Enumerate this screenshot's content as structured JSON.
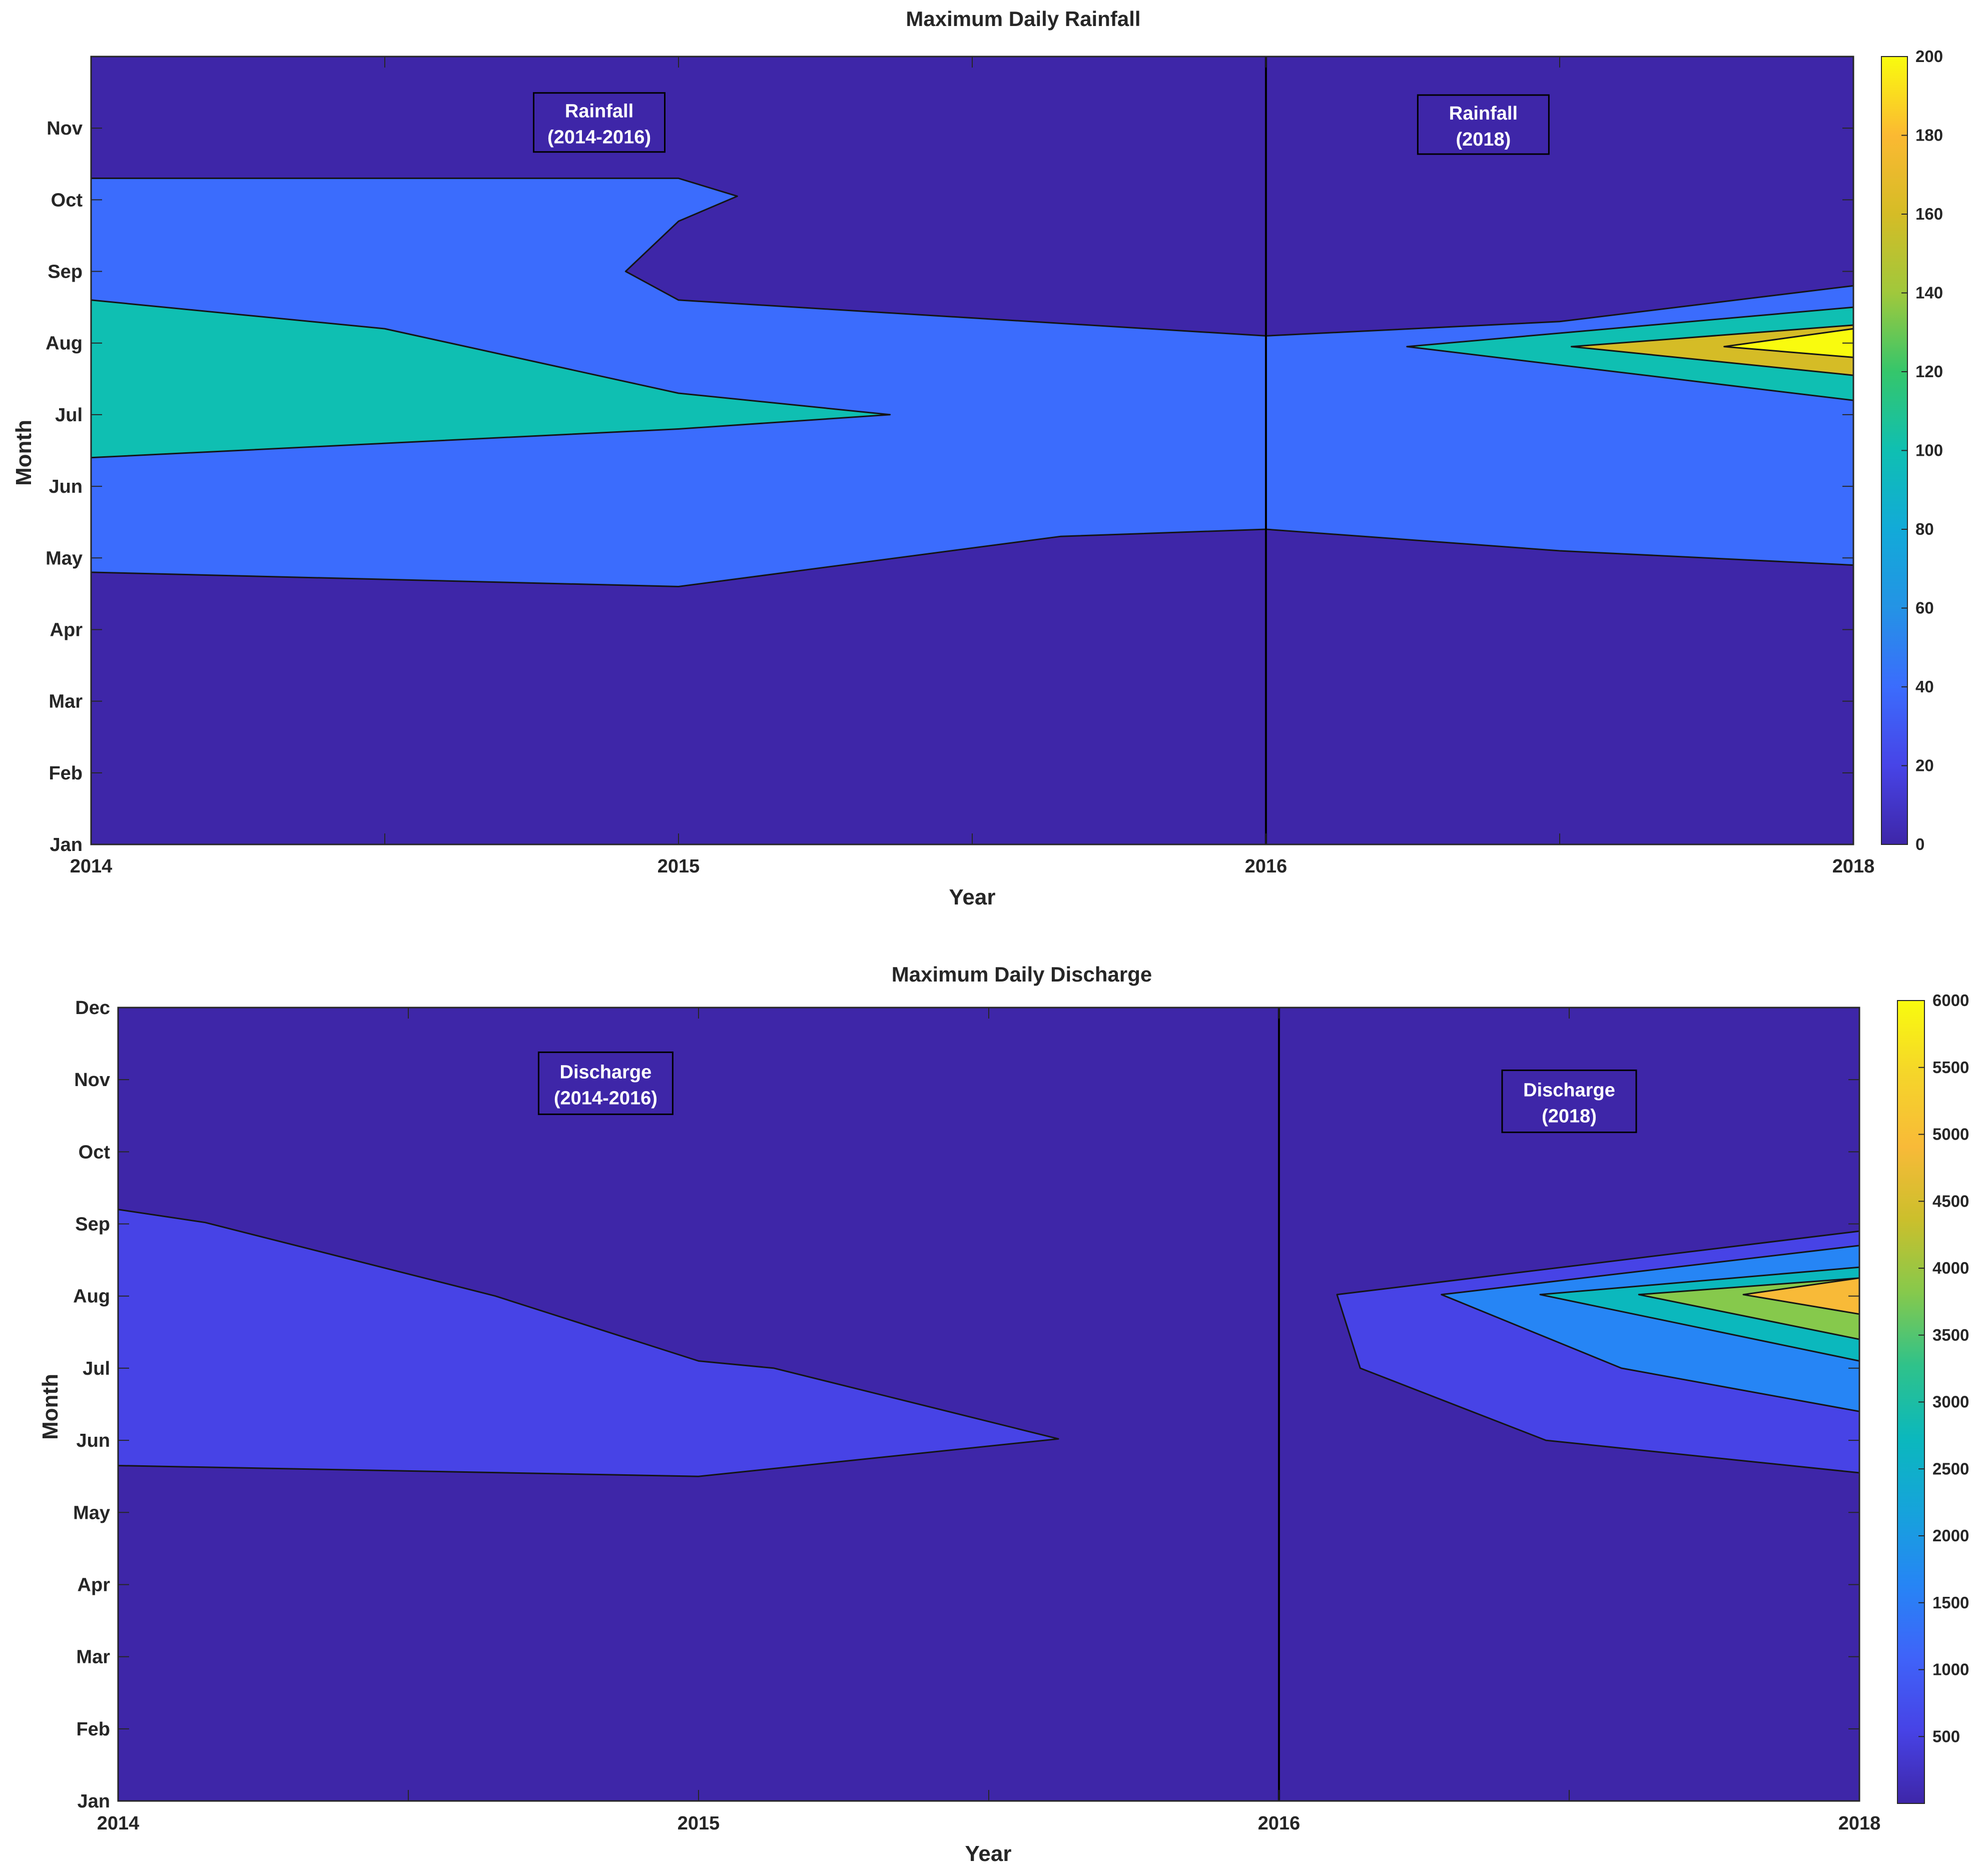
{
  "chart_data": [
    {
      "type": "contour",
      "title": "Maximum Daily Rainfall",
      "xlabel": "Year",
      "ylabel": "Month",
      "x_ticks": [
        "2014",
        "2015",
        "2016",
        "2018"
      ],
      "y_ticks": [
        "Jan",
        "Feb",
        "Mar",
        "Apr",
        "May",
        "Jun",
        "Jul",
        "Aug",
        "Sep",
        "Oct",
        "Nov"
      ],
      "ylim": [
        1,
        12
      ],
      "colorbar": {
        "min": 0,
        "max": 200,
        "ticks": [
          "0",
          "20",
          "40",
          "60",
          "80",
          "100",
          "120",
          "140",
          "160",
          "180",
          "200"
        ],
        "colors": [
          "#3e26a8",
          "#4744e7",
          "#3b6cfd",
          "#2493e5",
          "#12aad8",
          "#0fbfb2",
          "#35c66b",
          "#a0c83c",
          "#d5bc26",
          "#fbb932",
          "#f9fb0e"
        ]
      },
      "contour_levels": [
        0,
        20,
        40,
        60,
        80,
        100,
        120,
        140,
        160,
        180,
        200
      ],
      "regions": [
        {
          "label": "rainfall-background",
          "color_index": 0,
          "level": "0-20",
          "points": [
            [
              0,
              1
            ],
            [
              3,
              1
            ],
            [
              3,
              12
            ],
            [
              0,
              12
            ]
          ]
        },
        {
          "label": "rainfall-band-40-60",
          "color_index": 2,
          "level": "40-60",
          "points": [
            [
              0,
              10.3
            ],
            [
              1,
              10.3
            ],
            [
              1.1,
              10.05
            ],
            [
              1,
              9.7
            ],
            [
              0.91,
              9.0
            ],
            [
              1,
              8.6
            ],
            [
              2,
              8.1
            ],
            [
              2.5,
              8.3
            ],
            [
              3,
              8.8
            ],
            [
              3,
              4.9
            ],
            [
              2.5,
              5.1
            ],
            [
              2,
              5.4
            ],
            [
              1.65,
              5.3
            ],
            [
              1,
              4.6
            ],
            [
              0,
              4.8
            ]
          ]
        },
        {
          "label": "rainfall-band-100-120-a",
          "color_index": 5,
          "level": "100-120",
          "points": [
            [
              0,
              8.6
            ],
            [
              0.5,
              8.2
            ],
            [
              1,
              7.3
            ],
            [
              1.36,
              7.0
            ],
            [
              1,
              6.8
            ],
            [
              0,
              6.4
            ]
          ]
        },
        {
          "label": "rainfall-band-100-120-b",
          "color_index": 5,
          "level": "100-120",
          "points": [
            [
              3,
              8.5
            ],
            [
              2.24,
              7.95
            ],
            [
              3,
              7.2
            ]
          ]
        },
        {
          "label": "rainfall-band-140-160",
          "color_index": 8,
          "level": "140-160",
          "points": [
            [
              3,
              8.25
            ],
            [
              2.52,
              7.95
            ],
            [
              3,
              7.55
            ]
          ]
        },
        {
          "label": "rainfall-band-180-200",
          "color_index": 10,
          "level": "180-200",
          "points": [
            [
              3,
              8.2
            ],
            [
              2.78,
              7.95
            ],
            [
              3,
              7.8
            ]
          ]
        }
      ],
      "divider_x": 2,
      "annotations": [
        {
          "line1": "Rainfall",
          "line2": "(2014-2016)",
          "x": 0.865,
          "y": 11.08
        },
        {
          "line1": "Rainfall",
          "line2": "(2018)",
          "x": 2.37,
          "y": 11.05
        }
      ]
    },
    {
      "type": "contour",
      "title": "Maximum Daily Discharge",
      "xlabel": "Year",
      "ylabel": "Month",
      "x_ticks": [
        "2014",
        "2015",
        "2016",
        "2018"
      ],
      "y_ticks": [
        "Jan",
        "Feb",
        "Mar",
        "Apr",
        "May",
        "Jun",
        "Jul",
        "Aug",
        "Sep",
        "Oct",
        "Nov",
        "Dec"
      ],
      "ylim": [
        1,
        12
      ],
      "colorbar": {
        "min": 0,
        "max": 6000,
        "ticks": [
          "500",
          "1000",
          "1500",
          "2000",
          "2500",
          "3000",
          "3500",
          "4000",
          "4500",
          "5000",
          "5500",
          "6000"
        ],
        "colors": [
          "#3e26a8",
          "#4743e6",
          "#3f63f9",
          "#2685f5",
          "#16a3db",
          "#0bb8bd",
          "#2fc28a",
          "#86c94c",
          "#cbbf2c",
          "#f8ba38",
          "#f5d52a",
          "#f9fb0e"
        ]
      },
      "contour_levels": [
        0,
        500,
        1000,
        1500,
        2000,
        2500,
        3000,
        3500,
        4000,
        4500,
        5000,
        5500,
        6000
      ],
      "regions": [
        {
          "label": "discharge-background",
          "color_index": 0,
          "level": "0-500",
          "points": [
            [
              0,
              1
            ],
            [
              3,
              1
            ],
            [
              3,
              12
            ],
            [
              0,
              12
            ]
          ]
        },
        {
          "label": "discharge-band-500-1000-a",
          "color_index": 1,
          "level": "500-1000",
          "points": [
            [
              0,
              9.2
            ],
            [
              0.15,
              9.02
            ],
            [
              0.65,
              8.0
            ],
            [
              1,
              7.1
            ],
            [
              1.13,
              7.0
            ],
            [
              1.62,
              6.02
            ],
            [
              1,
              5.5
            ],
            [
              0,
              5.65
            ]
          ]
        },
        {
          "label": "discharge-band-500-1000-b",
          "color_index": 1,
          "level": "500-1000",
          "points": [
            [
              3,
              8.9
            ],
            [
              2.1,
              8.02
            ],
            [
              2.14,
              7.0
            ],
            [
              2.46,
              6.0
            ],
            [
              3,
              5.55
            ]
          ]
        },
        {
          "label": "discharge-band-1500-2000",
          "color_index": 3,
          "level": "1500-2000",
          "points": [
            [
              3,
              8.7
            ],
            [
              2.28,
              8.02
            ],
            [
              2.59,
              7.0
            ],
            [
              3,
              6.4
            ]
          ]
        },
        {
          "label": "discharge-band-2500-3000",
          "color_index": 5,
          "level": "2500-3000",
          "points": [
            [
              3,
              8.4
            ],
            [
              2.45,
              8.02
            ],
            [
              3,
              7.1
            ]
          ]
        },
        {
          "label": "discharge-band-3500-4000",
          "color_index": 7,
          "level": "3500-4000",
          "points": [
            [
              3,
              8.25
            ],
            [
              2.62,
              8.02
            ],
            [
              3,
              7.4
            ]
          ]
        },
        {
          "label": "discharge-band-4500-5000",
          "color_index": 9,
          "level": "4500-5000",
          "points": [
            [
              3,
              8.25
            ],
            [
              2.8,
              8.02
            ],
            [
              3,
              7.75
            ]
          ]
        }
      ],
      "divider_x": 2,
      "annotations": [
        {
          "line1": "Discharge",
          "line2": "(2014-2016)",
          "x": 0.84,
          "y": 10.95
        },
        {
          "line1": "Discharge",
          "line2": "(2018)",
          "x": 2.5,
          "y": 10.7
        }
      ]
    }
  ]
}
